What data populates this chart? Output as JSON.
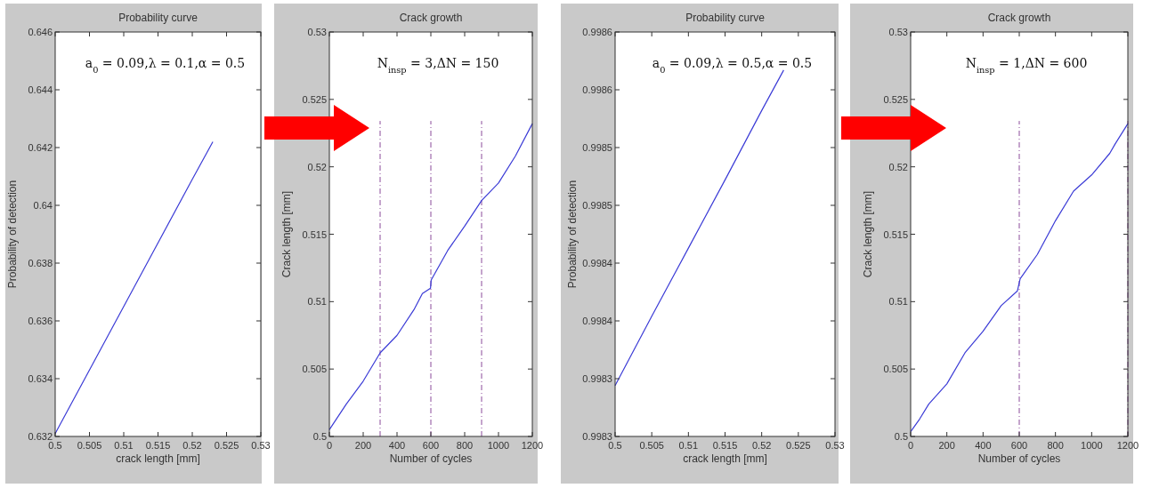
{
  "chart_data": [
    {
      "type": "line",
      "title": "Probability curve",
      "xlabel": "crack length [mm]",
      "ylabel": "Probability of detection",
      "annotations": [
        "a$_{0}$ = 0.09,λ = 0.1,α = 0.5"
      ],
      "xlim": [
        0.5,
        0.53
      ],
      "xticks": [
        0.5,
        0.505,
        0.51,
        0.515,
        0.52,
        0.525,
        0.53
      ],
      "ylim": [
        0.632,
        0.646
      ],
      "yticks": [
        0.632,
        0.634,
        0.636,
        0.638,
        0.64,
        0.642,
        0.644,
        0.646
      ],
      "grid": false,
      "series": [
        {
          "color": "#3b3bd6",
          "x": [
            0.5,
            0.505,
            0.51,
            0.515,
            0.52,
            0.523
          ],
          "values": [
            0.6321,
            0.6343,
            0.6365,
            0.6387,
            0.6409,
            0.6422
          ]
        }
      ]
    },
    {
      "type": "line",
      "title": "Crack growth",
      "xlabel": "Number of cycles",
      "ylabel": "Crack length [mm]",
      "annotations": [
        "N$_{insp}$ = 3,ΔN = 150"
      ],
      "xlim": [
        0,
        1200
      ],
      "xticks": [
        0,
        200,
        400,
        {
          "value": 600,
          "label": "600"
        },
        800,
        1000,
        1200
      ],
      "ylim": [
        0.5,
        0.53
      ],
      "yticks": [
        0.5,
        0.505,
        0.51,
        0.515,
        0.52,
        0.525,
        0.53
      ],
      "grid": false,
      "ref_lines": [
        {
          "axis": "x",
          "value": 300,
          "color": "#8a4a9a",
          "line_style": "dashed"
        },
        {
          "axis": "x",
          "value": 600,
          "color": "#8a4a9a",
          "line_style": "dashed"
        },
        {
          "axis": "x",
          "value": 900,
          "color": "#8a4a9a",
          "line_style": "dashed"
        }
      ],
      "series": [
        {
          "color": "#3b3bd6",
          "x": [
            0,
            100,
            200,
            300,
            400,
            500,
            550,
            598,
            602,
            700,
            800,
            900,
            1000,
            1100,
            1200
          ],
          "values": [
            0.5005,
            0.5024,
            0.5041,
            0.5062,
            0.5075,
            0.5094,
            0.5106,
            0.511,
            0.5116,
            0.5138,
            0.5156,
            0.5175,
            0.5188,
            0.5208,
            0.5232
          ]
        }
      ]
    },
    {
      "type": "line",
      "title": "Probability curve",
      "xlabel": "crack length [mm]",
      "ylabel": "Probability of detection",
      "annotations": [
        "a$_{0}$ = 0.09,λ = 0.5,α = 0.5"
      ],
      "xlim": [
        0.5,
        0.53
      ],
      "xticks": [
        0.5,
        0.505,
        0.51,
        0.515,
        0.52,
        0.525,
        0.53
      ],
      "ylim": [
        0.9983,
        0.99865
      ],
      "yticks": [
        {
          "value": 0.9983,
          "label": "0.9983"
        },
        {
          "value": 0.99835,
          "label": "0.9983"
        },
        {
          "value": 0.9984,
          "label": "0.9984"
        },
        {
          "value": 0.99845,
          "label": "0.9984"
        },
        {
          "value": 0.9985,
          "label": "0.9985"
        },
        {
          "value": 0.99855,
          "label": "0.9985"
        },
        {
          "value": 0.9986,
          "label": "0.9986"
        },
        {
          "value": 0.99865,
          "label": "0.9986"
        }
      ],
      "grid": false,
      "series": [
        {
          "color": "#3b3bd6",
          "x": [
            0.5,
            0.505,
            0.51,
            0.515,
            0.52,
            0.523
          ],
          "values": [
            0.998344,
            0.998404,
            0.998463,
            0.998522,
            0.998582,
            0.998617
          ]
        }
      ]
    },
    {
      "type": "line",
      "title": "Crack growth",
      "xlabel": "Number of cycles",
      "ylabel": "Crack length [mm]",
      "annotations": [
        "N$_{insp}$ = 1,ΔN = 600"
      ],
      "xlim": [
        0,
        1200
      ],
      "xticks": [
        0,
        200,
        400,
        600,
        800,
        1000,
        1200
      ],
      "ylim": [
        0.5,
        0.53
      ],
      "yticks": [
        0.5,
        0.505,
        0.51,
        0.515,
        0.52,
        0.525,
        0.53
      ],
      "grid": false,
      "ref_lines": [
        {
          "axis": "x",
          "value": 600,
          "color": "#8a4a9a",
          "line_style": "dashed"
        },
        {
          "axis": "x",
          "value": 1200,
          "color": "#8a4a9a",
          "line_style": "dashed"
        }
      ],
      "series": [
        {
          "color": "#3b3bd6",
          "x": [
            0,
            50,
            100,
            200,
            300,
            400,
            500,
            590,
            605,
            700,
            800,
            900,
            1000,
            1100,
            1130,
            1200
          ],
          "values": [
            0.50035,
            0.5013,
            0.5024,
            0.5039,
            0.5062,
            0.5078,
            0.5097,
            0.5108,
            0.5117,
            0.5135,
            0.516,
            0.5182,
            0.5194,
            0.521,
            0.5217,
            0.5232
          ]
        }
      ]
    }
  ]
}
